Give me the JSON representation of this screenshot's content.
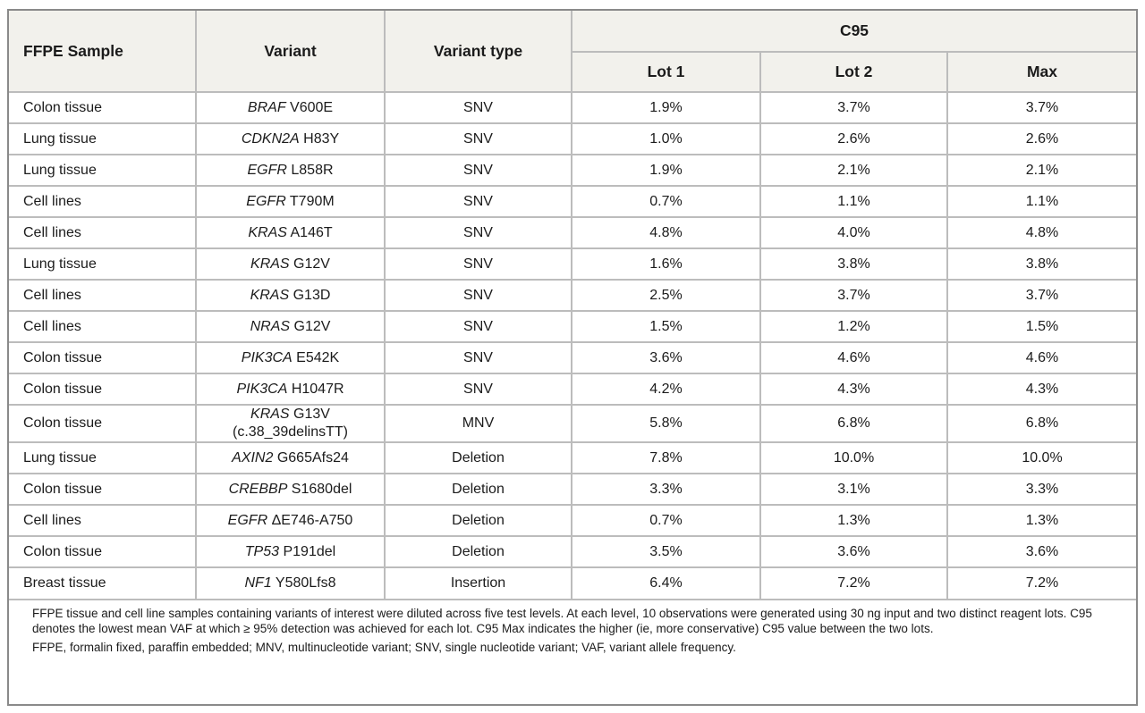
{
  "table": {
    "headers": {
      "ffpe_sample": "FFPE Sample",
      "variant": "Variant",
      "variant_type": "Variant type",
      "c95": "C95",
      "lot1": "Lot 1",
      "lot2": "Lot 2",
      "max": "Max"
    },
    "rows": [
      {
        "sample": "Colon tissue",
        "gene": "BRAF",
        "change": "V600E",
        "change2": "",
        "type": "SNV",
        "lot1": "1.9%",
        "lot2": "3.7%",
        "max": "3.7%"
      },
      {
        "sample": "Lung tissue",
        "gene": "CDKN2A",
        "change": "H83Y",
        "change2": "",
        "type": "SNV",
        "lot1": "1.0%",
        "lot2": "2.6%",
        "max": "2.6%"
      },
      {
        "sample": "Lung tissue",
        "gene": "EGFR",
        "change": "L858R",
        "change2": "",
        "type": "SNV",
        "lot1": "1.9%",
        "lot2": "2.1%",
        "max": "2.1%"
      },
      {
        "sample": "Cell lines",
        "gene": "EGFR",
        "change": "T790M",
        "change2": "",
        "type": "SNV",
        "lot1": "0.7%",
        "lot2": "1.1%",
        "max": "1.1%"
      },
      {
        "sample": "Cell lines",
        "gene": "KRAS",
        "change": "A146T",
        "change2": "",
        "type": "SNV",
        "lot1": "4.8%",
        "lot2": "4.0%",
        "max": "4.8%"
      },
      {
        "sample": "Lung tissue",
        "gene": "KRAS",
        "change": "G12V",
        "change2": "",
        "type": "SNV",
        "lot1": "1.6%",
        "lot2": "3.8%",
        "max": "3.8%"
      },
      {
        "sample": "Cell lines",
        "gene": "KRAS",
        "change": "G13D",
        "change2": "",
        "type": "SNV",
        "lot1": "2.5%",
        "lot2": "3.7%",
        "max": "3.7%"
      },
      {
        "sample": "Cell lines",
        "gene": "NRAS",
        "change": "G12V",
        "change2": "",
        "type": "SNV",
        "lot1": "1.5%",
        "lot2": "1.2%",
        "max": "1.5%"
      },
      {
        "sample": "Colon tissue",
        "gene": "PIK3CA",
        "change": "E542K",
        "change2": "",
        "type": "SNV",
        "lot1": "3.6%",
        "lot2": "4.6%",
        "max": "4.6%"
      },
      {
        "sample": "Colon tissue",
        "gene": "PIK3CA",
        "change": "H1047R",
        "change2": "",
        "type": "SNV",
        "lot1": "4.2%",
        "lot2": "4.3%",
        "max": "4.3%"
      },
      {
        "sample": "Colon tissue",
        "gene": "KRAS",
        "change": "G13V",
        "change2": "(c.38_39delinsTT)",
        "type": "MNV",
        "lot1": "5.8%",
        "lot2": "6.8%",
        "max": "6.8%"
      },
      {
        "sample": "Lung tissue",
        "gene": "AXIN2",
        "change": "G665Afs24",
        "change2": "",
        "type": "Deletion",
        "lot1": "7.8%",
        "lot2": "10.0%",
        "max": "10.0%"
      },
      {
        "sample": "Colon tissue",
        "gene": "CREBBP",
        "change": "S1680del",
        "change2": "",
        "type": "Deletion",
        "lot1": "3.3%",
        "lot2": "3.1%",
        "max": "3.3%"
      },
      {
        "sample": "Cell lines",
        "gene": "EGFR",
        "change": "ΔE746-A750",
        "change2": "",
        "type": "Deletion",
        "lot1": "0.7%",
        "lot2": "1.3%",
        "max": "1.3%"
      },
      {
        "sample": "Colon tissue",
        "gene": "TP53",
        "change": "P191del",
        "change2": "",
        "type": "Deletion",
        "lot1": "3.5%",
        "lot2": "3.6%",
        "max": "3.6%"
      },
      {
        "sample": "Breast tissue",
        "gene": "NF1",
        "change": "Y580Lfs8",
        "change2": "",
        "type": "Insertion",
        "lot1": "6.4%",
        "lot2": "7.2%",
        "max": "7.2%"
      }
    ],
    "footnotes": [
      "FFPE tissue and cell line samples containing variants of interest were diluted across five test levels. At each level, 10 observations were generated using 30 ng input and two distinct reagent lots. C95 denotes the lowest mean VAF at which ≥ 95% detection was achieved for each lot. C95 Max indicates the higher (ie, more conservative) C95 value between the two lots.",
      "FFPE, formalin fixed, paraffin embedded; MNV, multinucleotide variant; SNV, single nucleotide variant; VAF, variant allele frequency."
    ]
  },
  "colors": {
    "header_bg": "#f2f1ec",
    "outer_border": "#8a8a8a",
    "inner_border": "#bcbcbc",
    "text": "#1b1b1b"
  }
}
